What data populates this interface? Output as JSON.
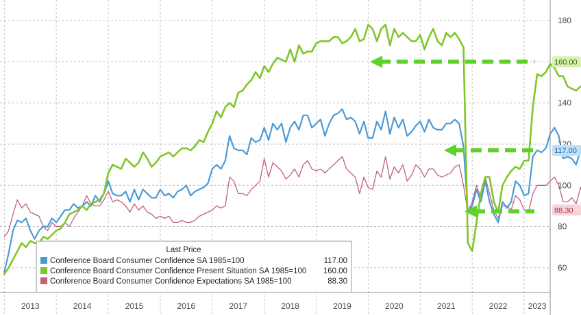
{
  "chart_data": {
    "type": "line",
    "x_start": "2013-01",
    "xlim": [
      "2012-12",
      "2023-07"
    ],
    "ylim": [
      48,
      190
    ],
    "yticks": [
      60,
      80,
      100,
      120,
      140,
      160,
      180
    ],
    "xticks": [
      "2013",
      "2014",
      "2015",
      "2016",
      "2017",
      "2018",
      "2019",
      "2020",
      "2021",
      "2022",
      "2023"
    ],
    "grid": true,
    "legend": {
      "title": "Last Price",
      "placement": "bottom-center"
    },
    "series": [
      {
        "name": "Conference Board Consumer Confidence SA 1985=100",
        "last_value": "117.00",
        "last_tag": "117.00",
        "color": "#4a9ad8",
        "values": [
          58,
          67,
          78,
          83,
          82,
          84,
          78,
          74,
          78,
          80,
          80,
          84,
          82,
          85,
          88,
          88,
          91,
          89,
          90,
          92,
          90,
          95,
          92,
          96,
          102,
          96,
          95,
          95,
          97,
          92,
          98,
          93,
          98,
          96,
          94,
          94,
          98,
          95,
          96,
          94,
          97,
          98,
          100,
          95,
          97,
          98,
          99,
          101,
          108,
          110,
          108,
          112,
          124,
          118,
          117,
          117,
          115,
          123,
          121,
          122,
          128,
          122,
          130,
          127,
          130,
          121,
          128,
          131,
          127,
          134,
          134,
          128,
          130,
          132,
          124,
          130,
          134,
          135,
          137,
          132,
          133,
          131,
          125,
          131,
          123,
          123,
          131,
          127,
          136,
          125,
          133,
          128,
          132,
          124,
          126,
          129,
          131,
          126,
          132,
          128,
          127,
          127,
          130,
          130,
          132,
          130,
          119,
          87,
          90,
          98,
          92,
          102,
          92,
          86,
          82,
          92,
          89,
          92,
          102,
          100,
          95,
          96,
          114,
          117,
          116,
          118,
          125,
          128,
          124,
          113,
          114,
          113,
          110,
          117,
          113,
          113,
          111,
          108,
          107,
          100,
          99,
          96,
          103,
          106,
          108,
          108,
          103,
          102,
          107,
          103,
          104,
          102,
          109,
          117
        ]
      },
      {
        "name": "Conference Board Consumer Confidence Present Situation SA 1985=100",
        "last_value": "160.00",
        "last_tag": "160.00",
        "color": "#7fc62a",
        "values": [
          57,
          60,
          64,
          68,
          72,
          70,
          73,
          72,
          72,
          75,
          74,
          76,
          78,
          79,
          82,
          86,
          87,
          88,
          90,
          88,
          91,
          92,
          93,
          96,
          106,
          110,
          109,
          108,
          113,
          111,
          109,
          111,
          116,
          113,
          109,
          111,
          114,
          115,
          116,
          114,
          116,
          118,
          118,
          117,
          119,
          122,
          121,
          126,
          130,
          136,
          133,
          138,
          140,
          138,
          145,
          146,
          149,
          151,
          155,
          152,
          158,
          155,
          159,
          162,
          161,
          160,
          166,
          160,
          168,
          164,
          165,
          165,
          169,
          170,
          170,
          170,
          172,
          172,
          169,
          170,
          172,
          176,
          170,
          171,
          178,
          176,
          170,
          176,
          178,
          168,
          176,
          172,
          174,
          172,
          170,
          170,
          173,
          166,
          172,
          176,
          170,
          168,
          174,
          172,
          174,
          171,
          167,
          72,
          68,
          82,
          96,
          104,
          104,
          92,
          87,
          100,
          104,
          107,
          109,
          108,
          112,
          112,
          138,
          154,
          153,
          155,
          159,
          157,
          153,
          153,
          148,
          147,
          146,
          148,
          148,
          148,
          146,
          151,
          147,
          145,
          146,
          150,
          148,
          142,
          145,
          140,
          141,
          146,
          151,
          148,
          149,
          148,
          154,
          160
        ]
      },
      {
        "name": "Conference Board Consumer Confidence Expectations SA 1985=100",
        "last_value": "88.30",
        "last_tag": "88.30",
        "color": "#c0607a",
        "values": [
          75,
          78,
          86,
          93,
          89,
          91,
          87,
          86,
          85,
          80,
          78,
          82,
          80,
          80,
          82,
          80,
          84,
          87,
          90,
          95,
          91,
          90,
          90,
          93,
          97,
          92,
          93,
          92,
          90,
          87,
          91,
          88,
          90,
          87,
          86,
          84,
          85,
          84,
          85,
          82,
          82,
          83,
          82,
          82,
          83,
          85,
          86,
          87,
          88,
          90,
          89,
          90,
          104,
          102,
          96,
          96,
          95,
          98,
          100,
          102,
          113,
          104,
          111,
          109,
          107,
          103,
          105,
          108,
          104,
          110,
          112,
          108,
          107,
          108,
          106,
          108,
          110,
          112,
          114,
          108,
          106,
          104,
          96,
          104,
          99,
          98,
          107,
          104,
          114,
          103,
          109,
          106,
          110,
          102,
          105,
          110,
          108,
          104,
          108,
          108,
          105,
          104,
          105,
          106,
          109,
          110,
          100,
          87,
          92,
          100,
          94,
          104,
          96,
          88,
          84,
          90,
          90,
          88,
          95,
          93,
          88,
          87,
          96,
          100,
          100,
          100,
          102,
          104,
          100,
          92,
          92,
          94,
          91,
          99,
          92,
          91,
          90,
          86,
          85,
          80,
          78,
          74,
          76,
          82,
          78,
          78,
          76,
          74,
          84,
          77,
          78,
          76,
          81,
          88
        ]
      }
    ],
    "annotations": [
      {
        "type": "dashed-arrow",
        "color": "#5fd12b",
        "points_to": "160.00"
      },
      {
        "type": "dashed-arrow",
        "color": "#5fd12b",
        "points_to": "117.00"
      },
      {
        "type": "dashed-arrow",
        "color": "#5fd12b",
        "points_to": "88.30"
      }
    ]
  }
}
